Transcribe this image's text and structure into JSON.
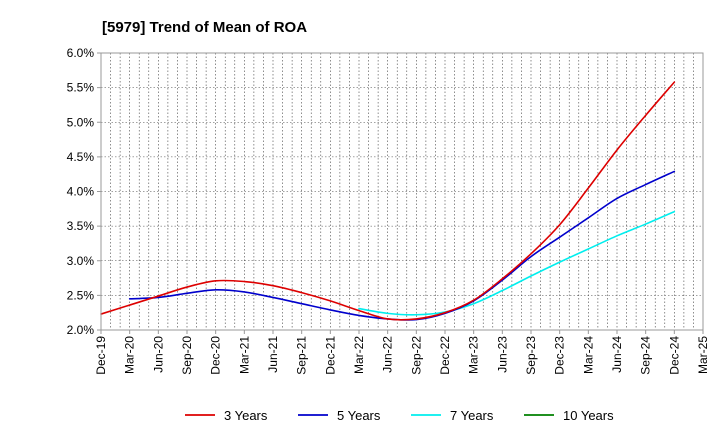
{
  "chart_data": {
    "type": "line",
    "title": "[5979]  Trend of Mean of ROA",
    "xlabel": "",
    "ylabel": "",
    "ylim": [
      2.0,
      6.0
    ],
    "y_ticks": [
      2.0,
      2.5,
      3.0,
      3.5,
      4.0,
      4.5,
      5.0,
      5.5,
      6.0
    ],
    "y_tick_labels": [
      "2.0%",
      "2.5%",
      "3.0%",
      "3.5%",
      "4.0%",
      "4.5%",
      "5.0%",
      "5.5%",
      "6.0%"
    ],
    "x_tick_labels": [
      "Dec-19",
      "Mar-20",
      "Jun-20",
      "Sep-20",
      "Dec-20",
      "Mar-21",
      "Jun-21",
      "Sep-21",
      "Dec-21",
      "Mar-22",
      "Jun-22",
      "Sep-22",
      "Dec-22",
      "Mar-23",
      "Jun-23",
      "Sep-23",
      "Dec-23",
      "Mar-24",
      "Jun-24",
      "Sep-24",
      "Dec-24",
      "Mar-25"
    ],
    "grid": true,
    "legend_position": "bottom",
    "series": [
      {
        "name": "3 Years",
        "color": "#dd0000",
        "start_index": 0,
        "values": [
          2.23,
          2.36,
          2.49,
          2.62,
          2.71,
          2.7,
          2.64,
          2.54,
          2.42,
          2.28,
          2.16,
          2.16,
          2.25,
          2.43,
          2.74,
          3.1,
          3.52,
          4.05,
          4.6,
          5.1,
          5.58
        ]
      },
      {
        "name": "5 Years",
        "color": "#0000cc",
        "start_index": 1,
        "values": [
          2.45,
          2.47,
          2.53,
          2.58,
          2.55,
          2.47,
          2.38,
          2.29,
          2.21,
          2.16,
          2.15,
          2.24,
          2.42,
          2.72,
          3.06,
          3.34,
          3.62,
          3.9,
          4.1,
          4.29
        ]
      },
      {
        "name": "7 Years",
        "color": "#00eeee",
        "start_index": 9,
        "values": [
          2.31,
          2.24,
          2.22,
          2.26,
          2.38,
          2.57,
          2.78,
          2.98,
          3.17,
          3.36,
          3.53,
          3.71
        ]
      },
      {
        "name": "10 Years",
        "color": "#008000",
        "start_index": 0,
        "values": []
      }
    ]
  }
}
